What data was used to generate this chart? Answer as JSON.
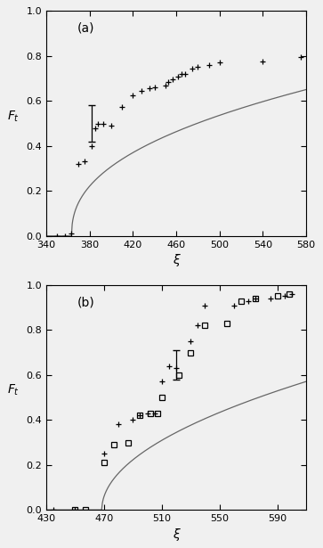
{
  "panel_a": {
    "label": "(a)",
    "xlim": [
      340,
      580
    ],
    "xticks": [
      340,
      380,
      420,
      460,
      500,
      540,
      580
    ],
    "ylim": [
      0,
      1
    ],
    "yticks": [
      0,
      0.2,
      0.4,
      0.6,
      0.8,
      1
    ],
    "curve_x0": 363.5,
    "curve_alpha": 0.42,
    "curve_scale": 0.068,
    "plus_x": [
      350,
      357,
      363,
      370,
      375,
      382,
      385,
      388,
      393,
      400,
      410,
      420,
      428,
      435,
      440,
      450,
      453,
      457,
      462,
      465,
      468,
      475,
      480,
      490,
      500,
      540,
      575
    ],
    "plus_y": [
      0.0,
      0.0,
      0.01,
      0.32,
      0.33,
      0.4,
      0.48,
      0.5,
      0.5,
      0.49,
      0.575,
      0.625,
      0.645,
      0.655,
      0.66,
      0.67,
      0.685,
      0.695,
      0.71,
      0.72,
      0.72,
      0.745,
      0.75,
      0.76,
      0.77,
      0.775,
      0.795
    ],
    "errbar_x": [
      382
    ],
    "errbar_y": [
      0.5
    ],
    "errbar_yerr": [
      0.08
    ]
  },
  "panel_b": {
    "label": "(b)",
    "xlim": [
      430,
      610
    ],
    "xticks": [
      430,
      470,
      510,
      550,
      590
    ],
    "ylim": [
      0,
      1
    ],
    "yticks": [
      0,
      0.2,
      0.4,
      0.6,
      0.8,
      1
    ],
    "curve_x0": 468.5,
    "curve_alpha": 0.5,
    "curve_scale": 0.048,
    "plus_x": [
      435,
      450,
      470,
      480,
      490,
      495,
      500,
      505,
      510,
      515,
      520,
      530,
      535,
      540,
      560,
      570,
      575,
      585,
      595,
      600
    ],
    "plus_y": [
      0.0,
      0.0,
      0.25,
      0.38,
      0.4,
      0.42,
      0.43,
      0.43,
      0.57,
      0.64,
      0.63,
      0.75,
      0.82,
      0.91,
      0.91,
      0.93,
      0.94,
      0.94,
      0.95,
      0.96
    ],
    "square_x": [
      450,
      457,
      470,
      477,
      487,
      495,
      502,
      507,
      510,
      522,
      530,
      540,
      555,
      565,
      575,
      590,
      598
    ],
    "square_y": [
      0.0,
      0.0,
      0.21,
      0.29,
      0.3,
      0.42,
      0.43,
      0.43,
      0.5,
      0.6,
      0.7,
      0.82,
      0.83,
      0.93,
      0.94,
      0.95,
      0.96
    ],
    "errbar_x": [
      520
    ],
    "errbar_y": [
      0.645
    ],
    "errbar_yerr": [
      0.065
    ]
  },
  "xlabel": "ξ",
  "background_color": "#f0f0f0",
  "line_color": "#666666",
  "plus_color": "#000000",
  "square_color": "#000000"
}
